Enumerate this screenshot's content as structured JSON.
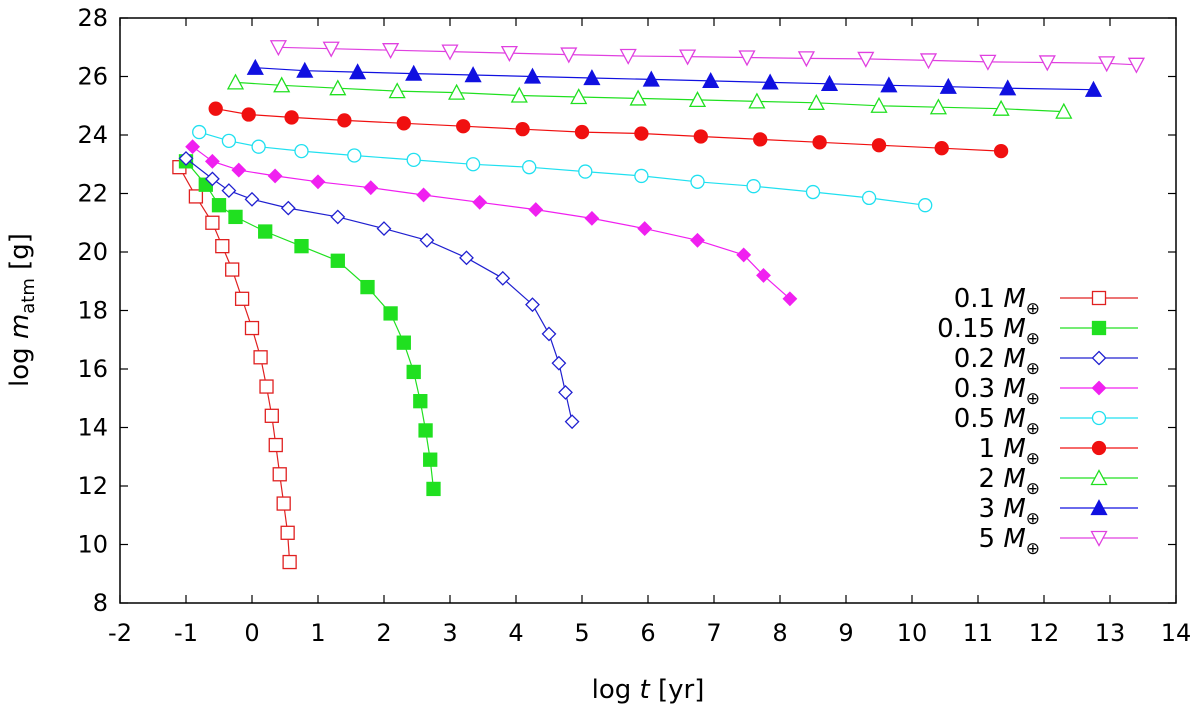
{
  "chart_data": {
    "type": "line",
    "xlabel": {
      "prefix": "log ",
      "var": "t",
      "suffix": " [yr]"
    },
    "ylabel": {
      "prefix": "log ",
      "var": "m",
      "sub": "atm",
      "suffix": " [g]"
    },
    "xlim": [
      -2,
      14
    ],
    "ylim": [
      8,
      28
    ],
    "xticks": [
      "-2",
      "-1",
      "0",
      "1",
      "2",
      "3",
      "4",
      "5",
      "6",
      "7",
      "8",
      "9",
      "10",
      "11",
      "12",
      "13",
      "14"
    ],
    "yticks": [
      "8",
      "10",
      "12",
      "14",
      "16",
      "18",
      "20",
      "22",
      "24",
      "26",
      "28"
    ],
    "grid": false,
    "legend_position": "bottom-right",
    "legend_unit_symbol": "M",
    "legend_unit_sub": "⊕",
    "series": [
      {
        "name": "0.1",
        "color": "#e02020",
        "marker": "square-open",
        "x": [
          -1.1,
          -0.85,
          -0.6,
          -0.45,
          -0.3,
          -0.15,
          0.0,
          0.13,
          0.22,
          0.3,
          0.36,
          0.42,
          0.48,
          0.54,
          0.57
        ],
        "y": [
          22.9,
          21.9,
          21.0,
          20.2,
          19.4,
          18.4,
          17.4,
          16.4,
          15.4,
          14.4,
          13.4,
          12.4,
          11.4,
          10.4,
          9.4
        ]
      },
      {
        "name": "0.15",
        "color": "#20e020",
        "marker": "square-filled",
        "x": [
          -1.0,
          -0.7,
          -0.5,
          -0.25,
          0.2,
          0.75,
          1.3,
          1.75,
          2.1,
          2.3,
          2.45,
          2.55,
          2.63,
          2.7,
          2.75
        ],
        "y": [
          23.1,
          22.3,
          21.6,
          21.2,
          20.7,
          20.2,
          19.7,
          18.8,
          17.9,
          16.9,
          15.9,
          14.9,
          13.9,
          12.9,
          11.9
        ]
      },
      {
        "name": "0.2",
        "color": "#2020d0",
        "marker": "diamond-open",
        "x": [
          -1.0,
          -0.6,
          -0.35,
          0.0,
          0.55,
          1.3,
          2.0,
          2.65,
          3.25,
          3.8,
          4.25,
          4.5,
          4.65,
          4.75,
          4.85
        ],
        "y": [
          23.2,
          22.5,
          22.1,
          21.8,
          21.5,
          21.2,
          20.8,
          20.4,
          19.8,
          19.1,
          18.2,
          17.2,
          16.2,
          15.2,
          14.2
        ]
      },
      {
        "name": "0.3",
        "color": "#f020f0",
        "marker": "diamond-filled",
        "x": [
          -0.9,
          -0.6,
          -0.2,
          0.35,
          1.0,
          1.8,
          2.6,
          3.45,
          4.3,
          5.15,
          5.95,
          6.75,
          7.45,
          7.75,
          8.15
        ],
        "y": [
          23.6,
          23.1,
          22.8,
          22.6,
          22.4,
          22.2,
          21.95,
          21.7,
          21.45,
          21.15,
          20.8,
          20.4,
          19.9,
          19.2,
          18.4
        ]
      },
      {
        "name": "0.5",
        "color": "#20e0f0",
        "marker": "circle-open",
        "x": [
          -0.8,
          -0.35,
          0.1,
          0.75,
          1.55,
          2.45,
          3.35,
          4.2,
          5.05,
          5.9,
          6.75,
          7.6,
          8.5,
          9.35,
          10.2
        ],
        "y": [
          24.1,
          23.8,
          23.6,
          23.45,
          23.3,
          23.15,
          23.0,
          22.9,
          22.75,
          22.6,
          22.4,
          22.25,
          22.05,
          21.85,
          21.6
        ]
      },
      {
        "name": "1",
        "color": "#f01010",
        "marker": "circle-filled",
        "x": [
          -0.55,
          -0.05,
          0.6,
          1.4,
          2.3,
          3.2,
          4.1,
          5.0,
          5.9,
          6.8,
          7.7,
          8.6,
          9.5,
          10.45,
          11.35
        ],
        "y": [
          24.9,
          24.7,
          24.6,
          24.5,
          24.4,
          24.3,
          24.2,
          24.1,
          24.05,
          23.95,
          23.85,
          23.75,
          23.65,
          23.55,
          23.45
        ]
      },
      {
        "name": "2",
        "color": "#20e020",
        "marker": "triangle-up-open",
        "x": [
          -0.25,
          0.45,
          1.3,
          2.2,
          3.1,
          4.05,
          4.95,
          5.85,
          6.75,
          7.65,
          8.55,
          9.5,
          10.4,
          11.35,
          12.3
        ],
        "y": [
          25.8,
          25.7,
          25.6,
          25.5,
          25.45,
          25.35,
          25.3,
          25.25,
          25.2,
          25.15,
          25.1,
          25.0,
          24.95,
          24.9,
          24.8
        ]
      },
      {
        "name": "3",
        "color": "#1010e0",
        "marker": "triangle-up-filled",
        "x": [
          0.05,
          0.8,
          1.6,
          2.45,
          3.35,
          4.25,
          5.15,
          6.05,
          6.95,
          7.85,
          8.75,
          9.65,
          10.55,
          11.45,
          12.75
        ],
        "y": [
          26.3,
          26.2,
          26.15,
          26.1,
          26.05,
          26.0,
          25.95,
          25.9,
          25.85,
          25.8,
          25.75,
          25.7,
          25.65,
          25.6,
          25.55
        ]
      },
      {
        "name": "5",
        "color": "#e040e0",
        "marker": "triangle-down-open",
        "x": [
          0.4,
          1.2,
          2.1,
          3.0,
          3.9,
          4.8,
          5.7,
          6.6,
          7.5,
          8.4,
          9.3,
          10.25,
          11.15,
          12.05,
          12.95,
          13.4
        ],
        "y": [
          27.0,
          26.95,
          26.9,
          26.85,
          26.8,
          26.75,
          26.7,
          26.68,
          26.65,
          26.62,
          26.6,
          26.55,
          26.5,
          26.48,
          26.45,
          26.4
        ]
      }
    ]
  }
}
